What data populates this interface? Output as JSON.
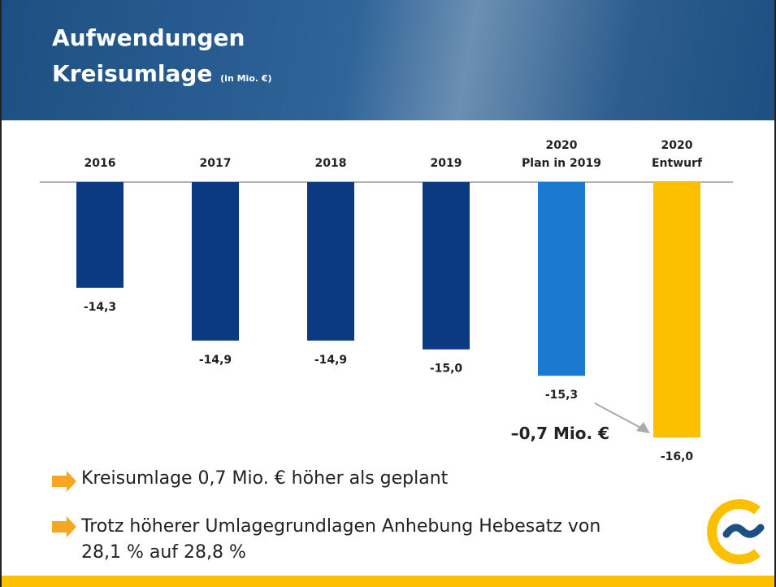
{
  "header": {
    "title_line1": "Aufwendungen",
    "title_line2": "Kreisumlage",
    "unit": "(in Mio. €)"
  },
  "chart_data": {
    "type": "bar",
    "categories": [
      "2016",
      "2017",
      "2018",
      "2019",
      "2020\nPlan in 2019",
      "2020\nEntwurf"
    ],
    "values": [
      -14.3,
      -14.9,
      -14.9,
      -15.0,
      -15.3,
      -16.0
    ],
    "value_labels": [
      "-14,3",
      "-14,9",
      "-14,9",
      "-15,0",
      "-15,3",
      "-16,0"
    ],
    "colors": [
      "#0c3a82",
      "#0c3a82",
      "#0c3a82",
      "#0c3a82",
      "#1b7ad0",
      "#fcc000"
    ],
    "ylim": [
      -13.1,
      -16.0
    ],
    "annotation": "–0,7 Mio. €"
  },
  "bullets": [
    "Kreisumlage 0,7 Mio. € höher als geplant",
    "Trotz höherer Umlagegrundlagen Anhebung Hebesatz von\n28,1 % auf 28,8 %"
  ]
}
